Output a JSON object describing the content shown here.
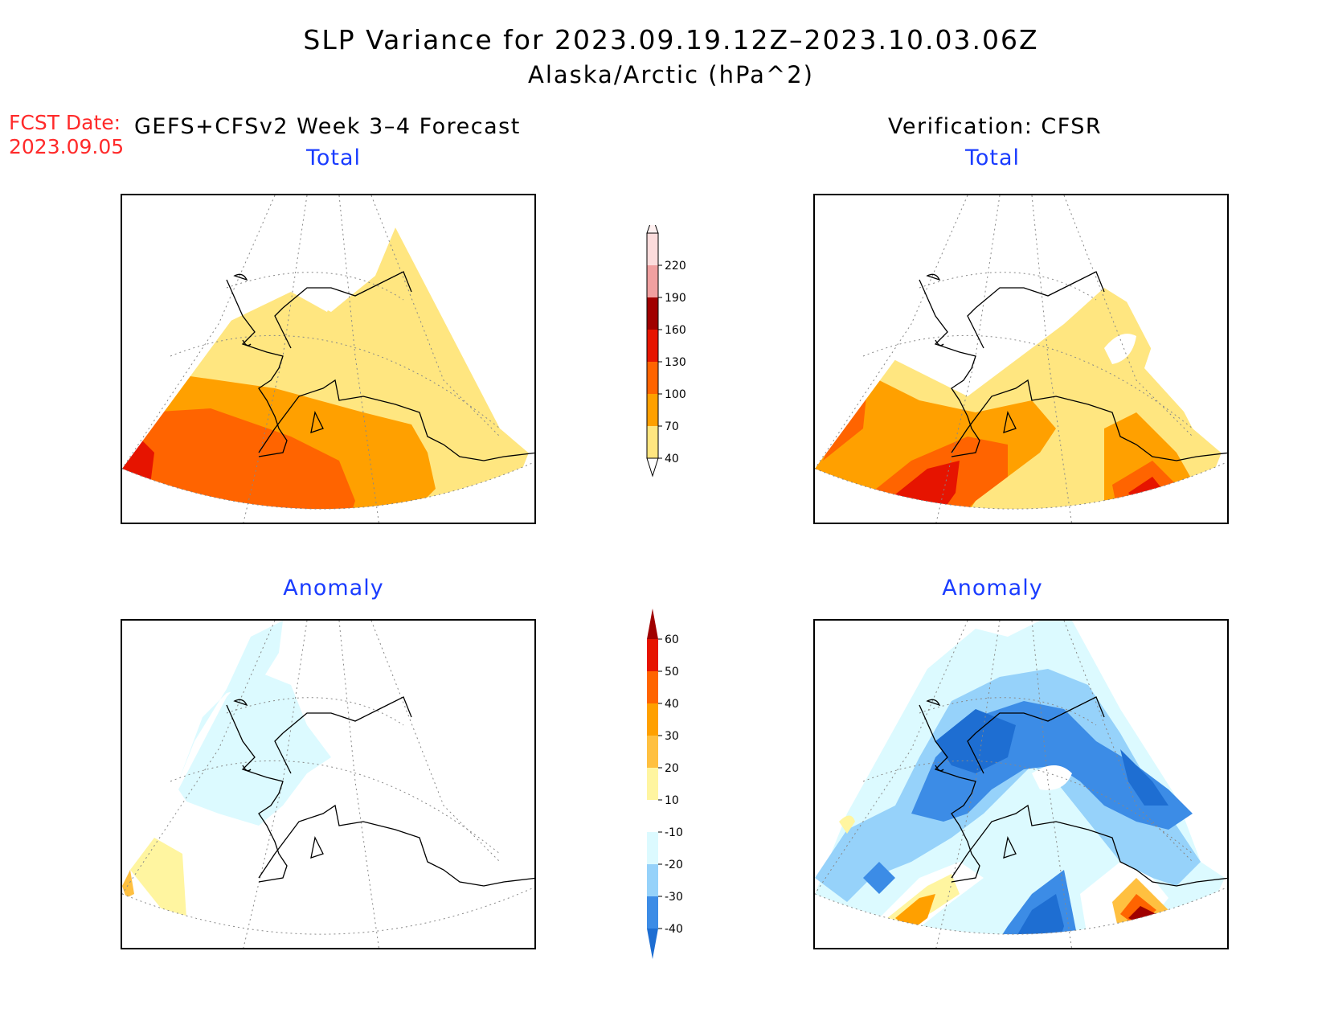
{
  "title": {
    "line1": "SLP Variance for 2023.09.19.12Z–2023.10.03.06Z",
    "line2": "Alaska/Arctic (hPa^2)"
  },
  "forecast": {
    "date_label": "FCST Date:",
    "date_value": "2023.09.05",
    "heading": "GEFS+CFSv2 Week 3–4 Forecast"
  },
  "verification": {
    "heading": "Verification: CFSR"
  },
  "panels": {
    "fcst_total": {
      "title": "Total"
    },
    "fcst_anomaly": {
      "title": "Anomaly"
    },
    "verif_total": {
      "title": "Total"
    },
    "verif_anomaly": {
      "title": "Anomaly"
    }
  },
  "colorbar_total": {
    "labels": [
      "40",
      "70",
      "100",
      "130",
      "160",
      "190",
      "220"
    ],
    "colors": [
      "#ffe680",
      "#ffa000",
      "#ff6400",
      "#e61400",
      "#a00000",
      "#f0a0a0",
      "#fcdcdc"
    ]
  },
  "colorbar_anomaly": {
    "labels": [
      "60",
      "50",
      "40",
      "30",
      "20",
      "10",
      "-10",
      "-20",
      "-30",
      "-40"
    ],
    "colors": {
      "above_60": "#a00000",
      "50_60": "#e61400",
      "40_50": "#ff6400",
      "30_40": "#ffa000",
      "20_30": "#ffc040",
      "10_20": "#fff5a0",
      "neg10_10": "#ffffff",
      "neg20_neg10": "#dcfaff",
      "neg30_neg20": "#96d2fa",
      "neg40_neg30": "#3c8ce6",
      "below_neg40": "#1e6ed2"
    }
  }
}
